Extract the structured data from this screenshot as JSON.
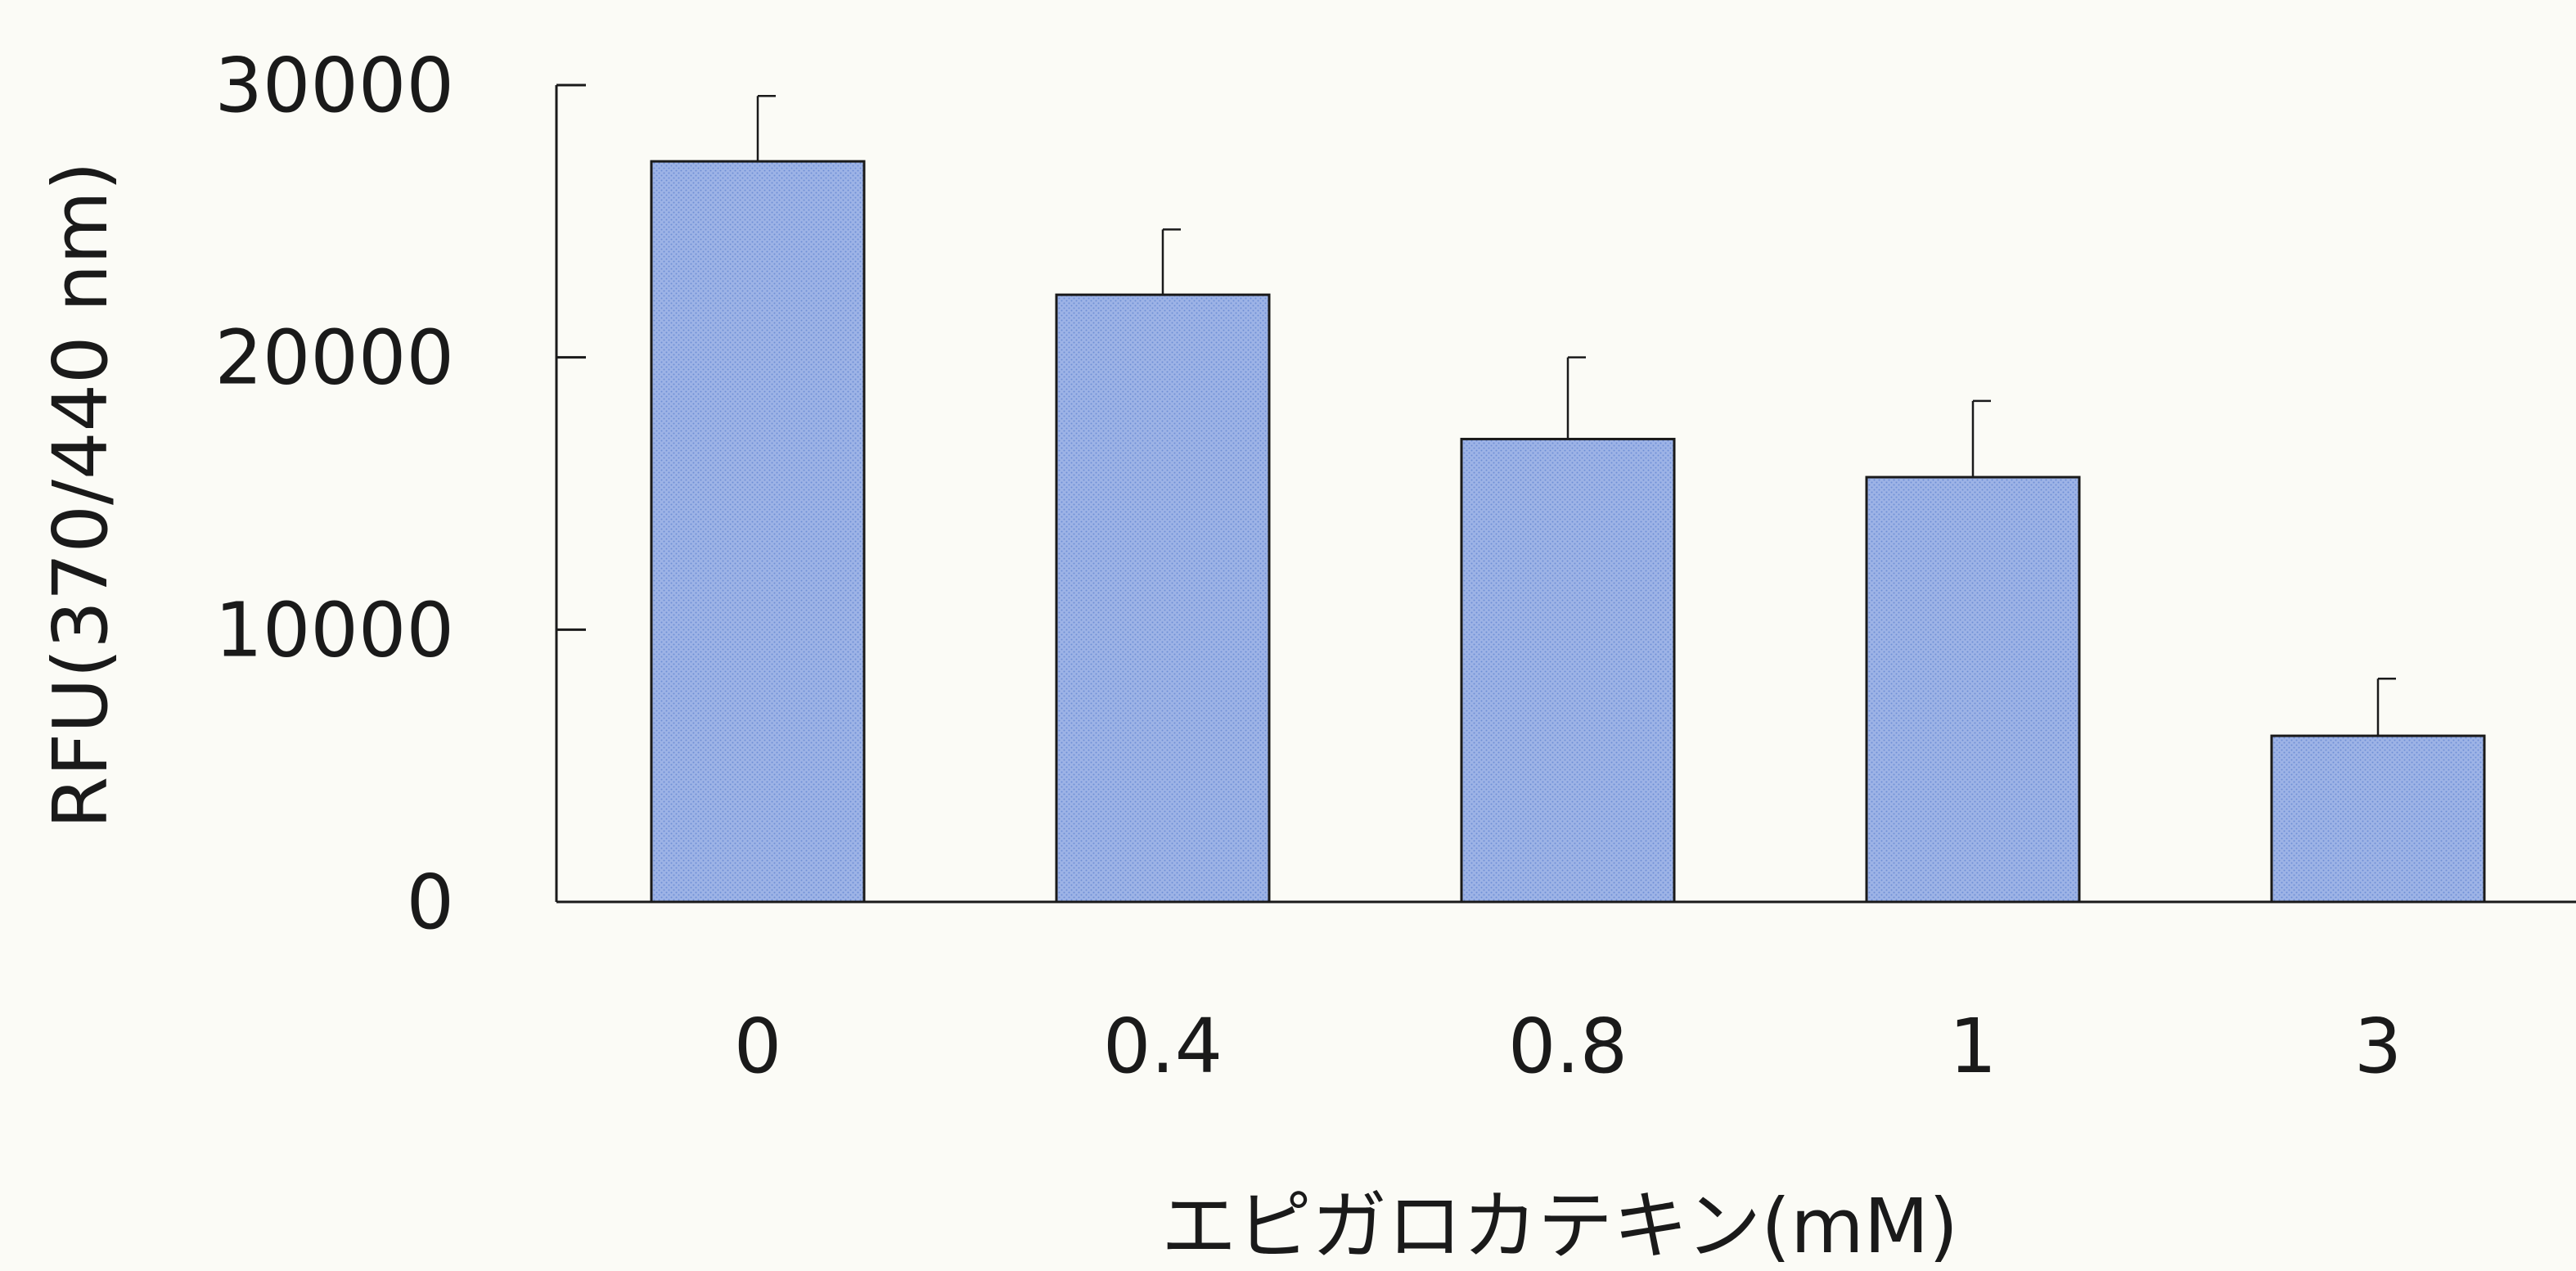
{
  "chart_data": {
    "type": "bar",
    "title": "",
    "xlabel": "エピガロカテキン(mM)",
    "ylabel": "RFU(370/440 nm)",
    "categories": [
      "0",
      "0.4",
      "0.8",
      "1",
      "3"
    ],
    "values": [
      27200,
      22300,
      17000,
      15600,
      6100
    ],
    "errors": [
      2400,
      2400,
      3000,
      2800,
      2100
    ],
    "ylim": [
      0,
      30000
    ],
    "yticks": [
      0,
      10000,
      20000,
      30000
    ],
    "ytick_labels": [
      "0",
      "10000",
      "20000",
      "30000"
    ],
    "grid": false,
    "legend": "none",
    "bar_color": "#8fa9e0",
    "bar_stroke": "#1a1a1a"
  }
}
